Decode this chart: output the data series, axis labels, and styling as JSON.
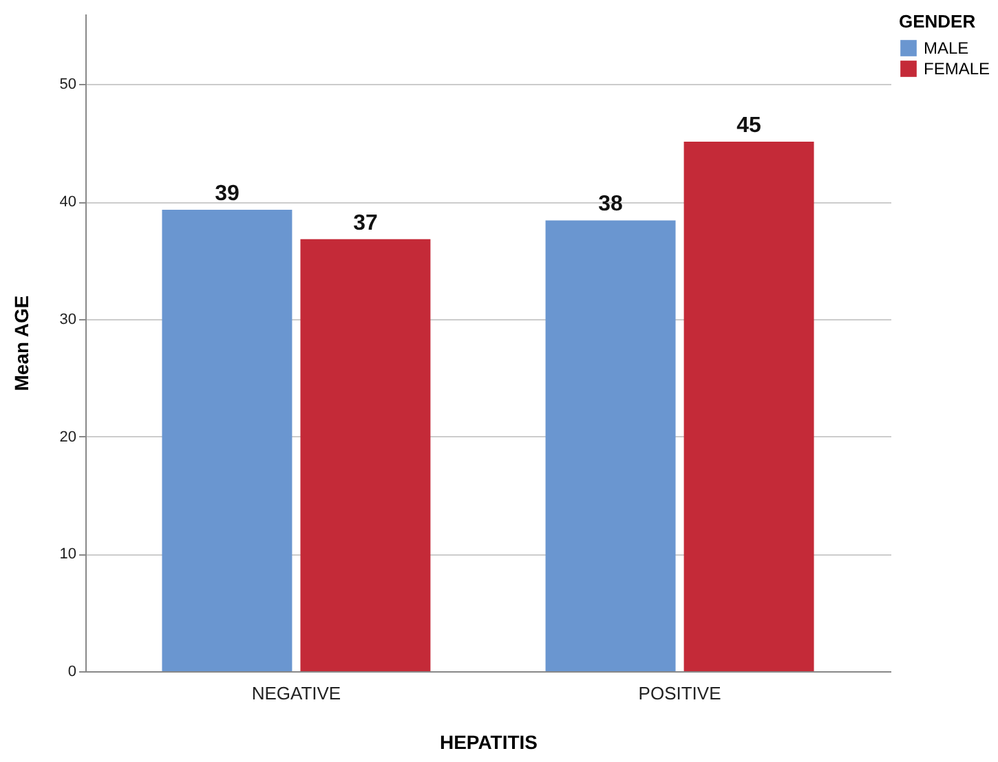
{
  "chart_data": {
    "type": "bar",
    "xlabel": "HEPATITIS",
    "ylabel": "Mean AGE",
    "legend_title": "GENDER",
    "legend": "top right",
    "grid": "y",
    "categories": [
      "NEGATIVE",
      "POSITIVE"
    ],
    "series": [
      {
        "name": "MALE",
        "color": "#6a96d0",
        "values": [
          39.3,
          38.4
        ],
        "value_labels": [
          "39",
          "38"
        ]
      },
      {
        "name": "FEMALE",
        "color": "#c42a38",
        "values": [
          36.8,
          45.1
        ],
        "value_labels": [
          "37",
          "45"
        ]
      }
    ],
    "ylim": [
      0,
      56
    ],
    "yticks": [
      0,
      10,
      20,
      30,
      40,
      50
    ]
  }
}
